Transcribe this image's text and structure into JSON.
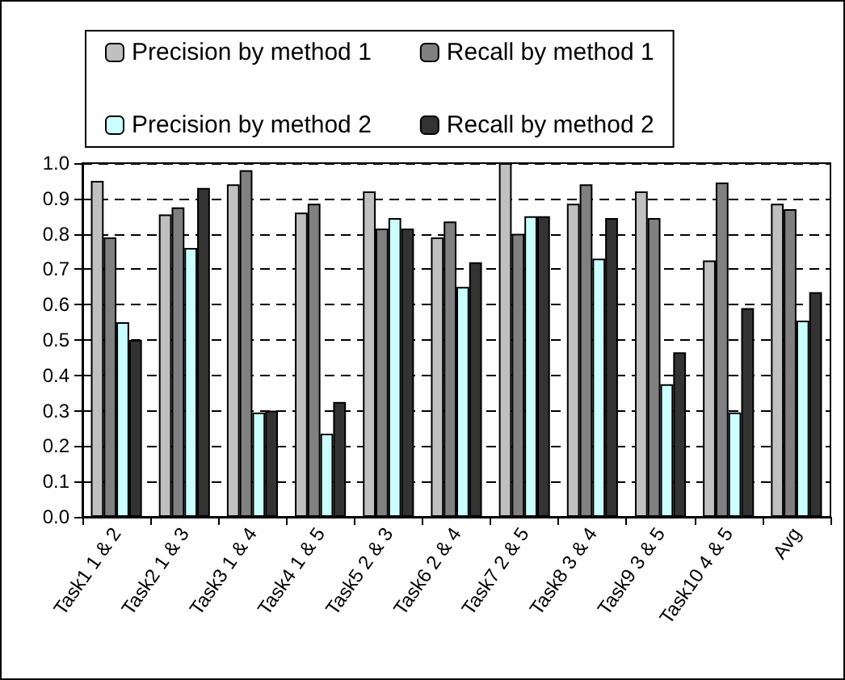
{
  "chart_data": {
    "type": "bar",
    "categories": [
      "Task1 1 & 2",
      "Task2 1 & 3",
      "Task3 1 & 4",
      "Task4 1 & 5",
      "Task5 2 & 3",
      "Task6 2 & 4",
      "Task7 2 & 5",
      "Task8 3 & 4",
      "Task9 3 & 5",
      "Task10 4 & 5",
      "Avg"
    ],
    "series": [
      {
        "name": "Precision by method 1",
        "color": "#c0c0c0",
        "values": [
          0.95,
          0.855,
          0.94,
          0.86,
          0.92,
          0.79,
          1.0,
          0.885,
          0.92,
          0.725,
          0.885
        ]
      },
      {
        "name": "Recall by method 1",
        "color": "#808080",
        "values": [
          0.79,
          0.875,
          0.98,
          0.885,
          0.815,
          0.835,
          0.8,
          0.94,
          0.845,
          0.945,
          0.87
        ]
      },
      {
        "name": "Precision by method 2",
        "color": "#ccffff",
        "values": [
          0.55,
          0.76,
          0.295,
          0.235,
          0.845,
          0.65,
          0.85,
          0.73,
          0.375,
          0.295,
          0.555
        ]
      },
      {
        "name": "Recall by method 2",
        "color": "#333333",
        "values": [
          0.5,
          0.93,
          0.3,
          0.325,
          0.815,
          0.72,
          0.85,
          0.845,
          0.465,
          0.59,
          0.635
        ]
      }
    ],
    "ylim": [
      0,
      1.0
    ],
    "yticks": [
      {
        "value": 0,
        "label": "0.0"
      },
      0.1,
      0.2,
      0.3,
      0.4,
      0.5,
      0.6,
      0.7,
      0.8,
      0.9,
      {
        "value": 1,
        "label": "1.0"
      }
    ],
    "grid": "y",
    "legend": "top"
  }
}
